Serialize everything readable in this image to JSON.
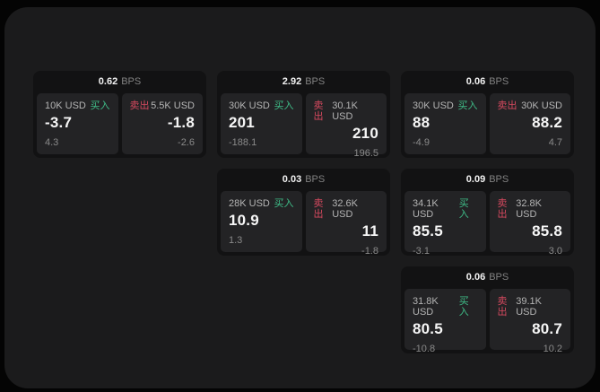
{
  "labels": {
    "bps_unit": "BPS",
    "buy": "买入",
    "sell": "卖出"
  },
  "colors": {
    "buy": "#3fbd88",
    "sell": "#d5495f",
    "background": "#040404",
    "panel": "#1b1b1c",
    "card": "#121213",
    "tile": "#232325"
  },
  "cards": [
    {
      "bps": "0.62",
      "buy": {
        "size": "10K USD",
        "value": "-3.7",
        "sub": "4.3"
      },
      "sell": {
        "size": "5.5K USD",
        "value": "-1.8",
        "sub": "-2.6"
      }
    },
    {
      "bps": "2.92",
      "buy": {
        "size": "30K USD",
        "value": "201",
        "sub": "-188.1"
      },
      "sell": {
        "size": "30.1K USD",
        "value": "210",
        "sub": "196.5"
      }
    },
    {
      "bps": "0.06",
      "buy": {
        "size": "30K USD",
        "value": "88",
        "sub": "-4.9"
      },
      "sell": {
        "size": "30K USD",
        "value": "88.2",
        "sub": "4.7"
      }
    },
    {
      "bps": "0.03",
      "buy": {
        "size": "28K USD",
        "value": "10.9",
        "sub": "1.3"
      },
      "sell": {
        "size": "32.6K USD",
        "value": "11",
        "sub": "-1.8"
      }
    },
    {
      "bps": "0.09",
      "buy": {
        "size": "34.1K USD",
        "value": "85.5",
        "sub": "-3.1"
      },
      "sell": {
        "size": "32.8K USD",
        "value": "85.8",
        "sub": "3.0"
      }
    },
    {
      "bps": "0.06",
      "buy": {
        "size": "31.8K USD",
        "value": "80.5",
        "sub": "-10.8"
      },
      "sell": {
        "size": "39.1K USD",
        "value": "80.7",
        "sub": "10.2"
      }
    }
  ]
}
